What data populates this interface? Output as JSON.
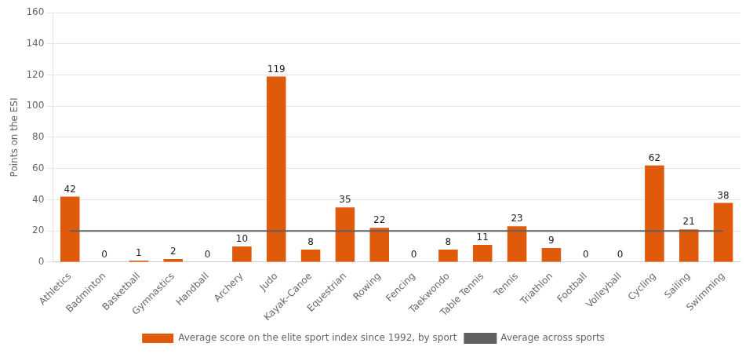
{
  "chart_data": {
    "type": "bar",
    "categories": [
      "Athletics",
      "Badminton",
      "Basketball",
      "Gymnastics",
      "Handball",
      "Archery",
      "Judo",
      "Kayak–Canoe",
      "Equestrian",
      "Rowing",
      "Fencing",
      "Taekwondo",
      "Table Tennis",
      "Tennis",
      "Triathlon",
      "Football",
      "Volleyball",
      "Cycling",
      "Sailing",
      "Swimming"
    ],
    "series": [
      {
        "name": "Average score on the elite sport index since 1992, by sport",
        "type": "bar",
        "color": "#E05A0C",
        "data_labels": true,
        "values": [
          42,
          0,
          1,
          2,
          0,
          10,
          119,
          8,
          35,
          22,
          0,
          8,
          11,
          23,
          9,
          0,
          0,
          62,
          21,
          38
        ]
      },
      {
        "name": "Average across sports",
        "type": "line",
        "color": "#606060",
        "values": [
          20,
          20,
          20,
          20,
          20,
          20,
          20,
          20,
          20,
          20,
          20,
          20,
          20,
          20,
          20,
          20,
          20,
          20,
          20,
          20
        ]
      }
    ],
    "ylabel": "Points on the ESI",
    "ylim": [
      0,
      160
    ],
    "yticks": [
      0,
      20,
      40,
      60,
      80,
      100,
      120,
      140,
      160
    ],
    "grid": true,
    "legend": "bottom"
  }
}
